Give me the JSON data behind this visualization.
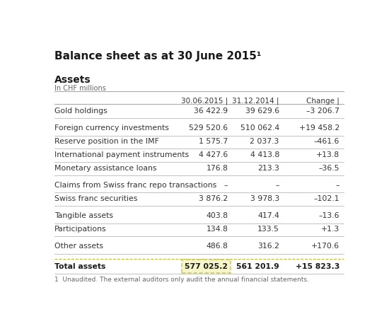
{
  "title": "Balance sheet as at 30 June 2015¹",
  "section": "Assets",
  "unit": "In CHF millions",
  "col_headers": [
    "30.06.2015 |",
    "31.12.2014 |",
    "Change |"
  ],
  "rows": [
    {
      "label": "Gold holdings",
      "v1": "36 422.9",
      "v2": "39 629.6",
      "v3": "–3 206.7",
      "group_before": true,
      "bold": false
    },
    {
      "label": "Foreign currency investments",
      "v1": "529 520.6",
      "v2": "510 062.4",
      "v3": "+19 458.2",
      "group_before": true,
      "bold": false
    },
    {
      "label": "Reserve position in the IMF",
      "v1": "1 575.7",
      "v2": "2 037.3",
      "v3": "–461.6",
      "group_before": false,
      "bold": false
    },
    {
      "label": "International payment instruments",
      "v1": "4 427.6",
      "v2": "4 413.8",
      "v3": "+13.8",
      "group_before": false,
      "bold": false
    },
    {
      "label": "Monetary assistance loans",
      "v1": "176.8",
      "v2": "213.3",
      "v3": "–36.5",
      "group_before": false,
      "bold": false
    },
    {
      "label": "Claims from Swiss franc repo transactions",
      "v1": "–",
      "v2": "–",
      "v3": "–",
      "group_before": true,
      "bold": false
    },
    {
      "label": "Swiss franc securities",
      "v1": "3 876.2",
      "v2": "3 978.3",
      "v3": "–102.1",
      "group_before": false,
      "bold": false
    },
    {
      "label": "Tangible assets",
      "v1": "403.8",
      "v2": "417.4",
      "v3": "–13.6",
      "group_before": true,
      "bold": false
    },
    {
      "label": "Participations",
      "v1": "134.8",
      "v2": "133.5",
      "v3": "+1.3",
      "group_before": false,
      "bold": false
    },
    {
      "label": "Other assets",
      "v1": "486.8",
      "v2": "316.2",
      "v3": "+170.6",
      "group_before": true,
      "bold": false
    },
    {
      "label": "Total assets",
      "v1": "577 025.2",
      "v2": "561 201.9",
      "v3": "+15 823.3",
      "group_before": true,
      "bold": true,
      "highlight_v1": true
    }
  ],
  "footnote": "1  Unaudited. The external auditors only audit the annual financial statements.",
  "bg_color": "#ffffff",
  "title_color": "#1a1a1a",
  "text_color": "#333333",
  "line_color": "#aaaaaa",
  "highlight_box_color": "#f5f5c8",
  "highlight_box_border": "#c8c864"
}
